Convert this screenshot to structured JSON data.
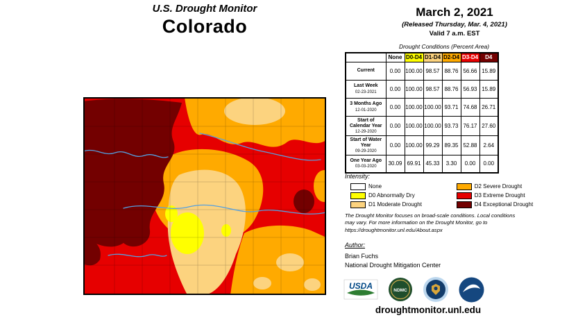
{
  "header": {
    "title": "U.S. Drought Monitor",
    "state": "Colorado"
  },
  "date_block": {
    "date": "March 2, 2021",
    "released": "(Released Thursday, Mar. 4, 2021)",
    "valid": "Valid 7 a.m. EST"
  },
  "table": {
    "caption": "Drought Conditions (Percent Area)",
    "columns": [
      "None",
      "D0-D4",
      "D1-D4",
      "D2-D4",
      "D3-D4",
      "D4"
    ],
    "header_colors": [
      "#FFFFFF",
      "#FFFF00",
      "#FCD37F",
      "#FFAA00",
      "#E60000",
      "#730000"
    ],
    "header_text_colors": [
      "#000000",
      "#000000",
      "#000000",
      "#000000",
      "#FFFFFF",
      "#FFFFFF"
    ],
    "rows": [
      {
        "label": "Current",
        "sub": "",
        "values": [
          "0.00",
          "100.00",
          "98.57",
          "88.76",
          "56.66",
          "15.89"
        ]
      },
      {
        "label": "Last Week",
        "sub": "02-23-2021",
        "values": [
          "0.00",
          "100.00",
          "98.57",
          "88.76",
          "56.93",
          "15.89"
        ]
      },
      {
        "label": "3 Months Ago",
        "sub": "12-01-2020",
        "values": [
          "0.00",
          "100.00",
          "100.00",
          "93.71",
          "74.68",
          "26.71"
        ]
      },
      {
        "label": "Start of Calendar Year",
        "sub": "12-29-2020",
        "values": [
          "0.00",
          "100.00",
          "100.00",
          "93.73",
          "76.17",
          "27.60"
        ]
      },
      {
        "label": "Start of Water Year",
        "sub": "09-29-2020",
        "values": [
          "0.00",
          "100.00",
          "99.29",
          "89.35",
          "52.88",
          "2.64"
        ]
      },
      {
        "label": "One Year Ago",
        "sub": "03-03-2020",
        "values": [
          "30.09",
          "69.91",
          "45.33",
          "3.30",
          "0.00",
          "0.00"
        ]
      }
    ]
  },
  "legend": {
    "title": "Intensity:",
    "items": [
      {
        "label": "None",
        "color": "#FFFFFF"
      },
      {
        "label": "D0 Abnormally Dry",
        "color": "#FFFF00"
      },
      {
        "label": "D1 Moderate Drought",
        "color": "#FCD37F"
      },
      {
        "label": "D2 Severe Drought",
        "color": "#FFAA00"
      },
      {
        "label": "D3 Extreme Drought",
        "color": "#E60000"
      },
      {
        "label": "D4 Exceptional Drought",
        "color": "#730000"
      }
    ]
  },
  "disclaimer": "The Drought Monitor focuses on broad-scale conditions. Local conditions may vary. For more information on the Drought Monitor, go to https://droughtmonitor.unl.edu/About.aspx",
  "author": {
    "heading": "Author:",
    "name": "Brian Fuchs",
    "org": "National Drought Mitigation Center"
  },
  "logos": [
    {
      "name": "USDA"
    },
    {
      "name": "NDMC"
    },
    {
      "name": "DOC"
    },
    {
      "name": "NOAA"
    }
  ],
  "footer": {
    "url": "droughtmonitor.unl.edu"
  }
}
